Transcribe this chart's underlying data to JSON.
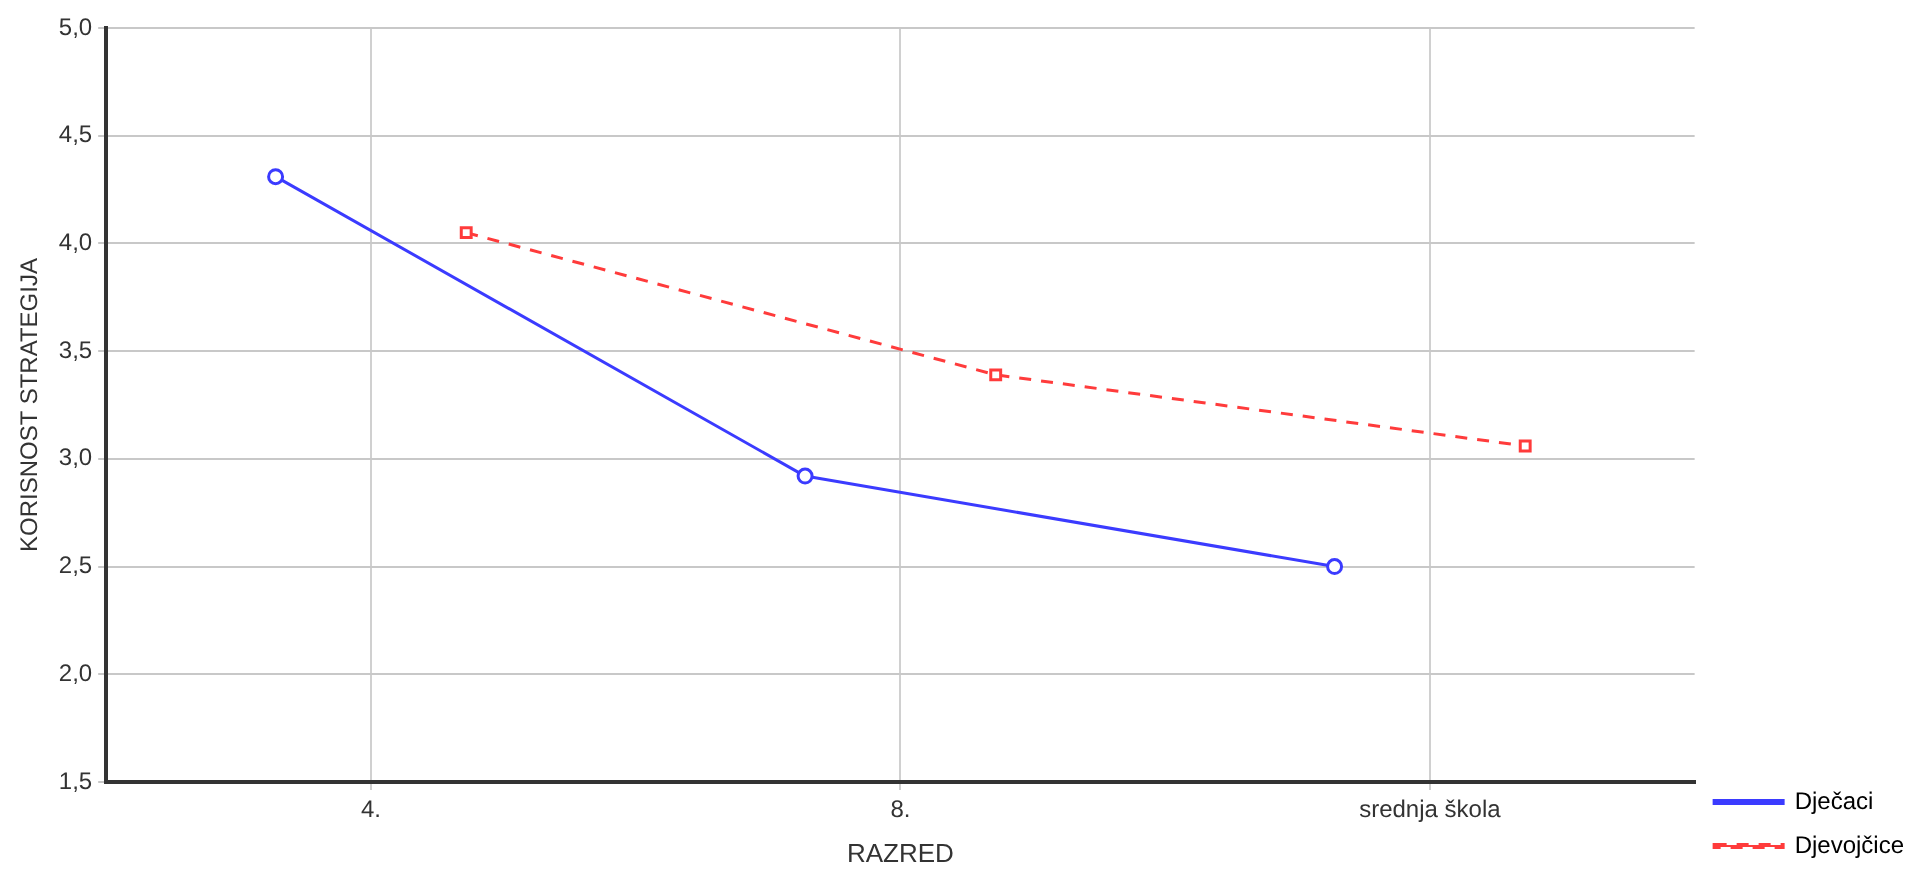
{
  "chart_data": {
    "type": "line",
    "xlabel": "RAZRED",
    "ylabel": "KORISNOST STRATEGIJA",
    "categories": [
      "4.",
      "8.",
      "srednja škola"
    ],
    "series": [
      {
        "name": "Dječaci",
        "color": "#3b3bff",
        "values": [
          4.31,
          2.92,
          2.5
        ],
        "marker": "circle",
        "line_style": "solid"
      },
      {
        "name": "Djevojčice",
        "color": "#ff3b3b",
        "values": [
          4.05,
          3.39,
          3.06
        ],
        "marker": "square",
        "line_style": "dashed"
      }
    ],
    "ylim": [
      1.5,
      5.0
    ],
    "yticks": [
      {
        "value": 1.5,
        "label": "1,5"
      },
      {
        "value": 2.0,
        "label": "2,0"
      },
      {
        "value": 2.5,
        "label": "2,5"
      },
      {
        "value": 3.0,
        "label": "3,0"
      },
      {
        "value": 3.5,
        "label": "3,5"
      },
      {
        "value": 4.0,
        "label": "4,0"
      },
      {
        "value": 4.5,
        "label": "4,5"
      },
      {
        "value": 5.0,
        "label": "5,0"
      }
    ],
    "grid": true,
    "legend": "bottom right"
  }
}
